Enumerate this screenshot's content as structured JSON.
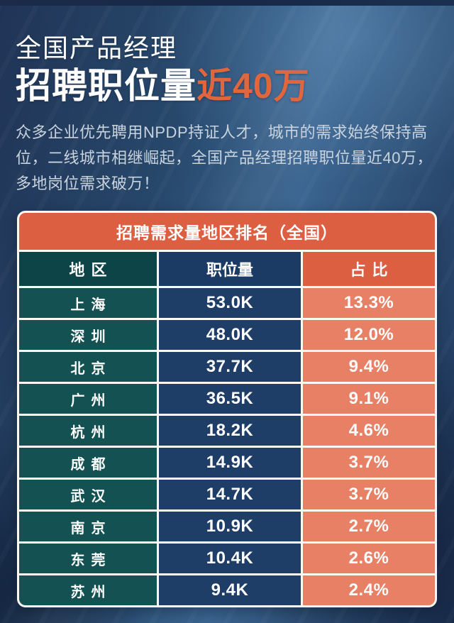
{
  "colors": {
    "accent_orange": "#e2663c",
    "table_title_orange": "#dc5f42",
    "share_cell_coral": "#e88065",
    "region_cell_teal": "#135153",
    "positions_cell_navy": "#1e3e68",
    "background_blue": "#2e5076",
    "text_white": "#ffffff",
    "description_gray": "#c9d3dd"
  },
  "hero": {
    "title_line1": "全国产品经理",
    "title_line2_white": "招聘职位量",
    "title_line2_accent": "近40万",
    "description": "众多企业优先聘用NPDP持证人才，城市的需求始终保持高位，二线城市相继崛起，全国产品经理招聘职位量近40万，多地岗位需求破万！"
  },
  "chart_data": {
    "type": "table",
    "title": "招聘需求量地区排名（全国）",
    "columns": [
      "地区",
      "职位量",
      "占比"
    ],
    "rows": [
      [
        "上海",
        "53.0K",
        "13.3%"
      ],
      [
        "深圳",
        "48.0K",
        "12.0%"
      ],
      [
        "北京",
        "37.7K",
        "9.4%"
      ],
      [
        "广州",
        "36.5K",
        "9.1%"
      ],
      [
        "杭州",
        "18.2K",
        "4.6%"
      ],
      [
        "成都",
        "14.9K",
        "3.7%"
      ],
      [
        "武汉",
        "14.7K",
        "3.7%"
      ],
      [
        "南京",
        "10.9K",
        "2.7%"
      ],
      [
        "东莞",
        "10.4K",
        "2.6%"
      ],
      [
        "苏州",
        "9.4K",
        "2.4%"
      ]
    ],
    "positions_unit": "K",
    "share_unit": "%"
  }
}
